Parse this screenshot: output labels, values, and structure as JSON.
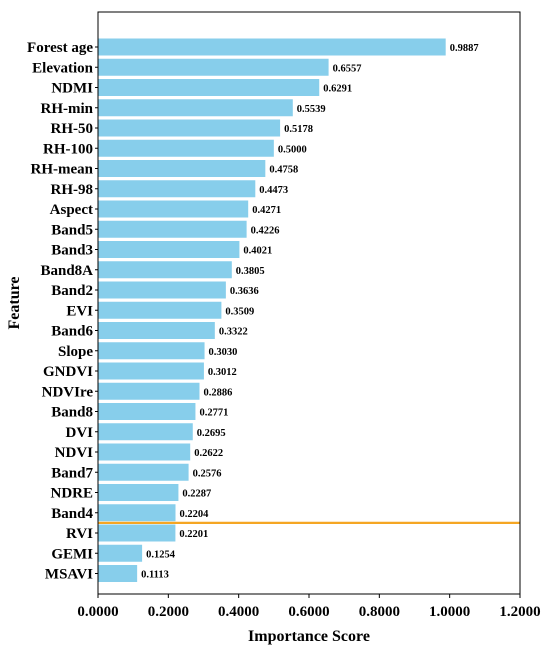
{
  "chart_data": {
    "type": "bar",
    "orientation": "horizontal",
    "xlabel": "Importance Score",
    "ylabel": "Feature",
    "xlim": [
      0,
      1.2
    ],
    "xticks": [
      "0.0000",
      "0.2000",
      "0.4000",
      "0.6000",
      "0.8000",
      "1.0000",
      "1.2000"
    ],
    "bar_color": "#87CEEB",
    "threshold_line": {
      "after_category": "Band4",
      "color": "#F5A623"
    },
    "categories": [
      "Forest age",
      "Elevation",
      "NDMI",
      "RH-min",
      "RH-50",
      "RH-100",
      "RH-mean",
      "RH-98",
      "Aspect",
      "Band5",
      "Band3",
      "Band8A",
      "Band2",
      "EVI",
      "Band6",
      "Slope",
      "GNDVI",
      "NDVIre",
      "Band8",
      "DVI",
      "NDVI",
      "Band7",
      "NDRE",
      "Band4",
      "RVI",
      "GEMI",
      "MSAVI"
    ],
    "values": [
      0.9887,
      0.6557,
      0.6291,
      0.5539,
      0.5178,
      0.5,
      0.4758,
      0.4473,
      0.4271,
      0.4226,
      0.4021,
      0.3805,
      0.3636,
      0.3509,
      0.3322,
      0.303,
      0.3012,
      0.2886,
      0.2771,
      0.2695,
      0.2622,
      0.2576,
      0.2287,
      0.2204,
      0.2201,
      0.1254,
      0.1113
    ],
    "value_labels": [
      "0.9887",
      "0.6557",
      "0.6291",
      "0.5539",
      "0.5178",
      "0.5000",
      "0.4758",
      "0.4473",
      "0.4271",
      "0.4226",
      "0.4021",
      "0.3805",
      "0.3636",
      "0.3509",
      "0.3322",
      "0.3030",
      "0.3012",
      "0.2886",
      "0.2771",
      "0.2695",
      "0.2622",
      "0.2576",
      "0.2287",
      "0.2204",
      "0.2201",
      "0.1254",
      "0.1113"
    ]
  }
}
